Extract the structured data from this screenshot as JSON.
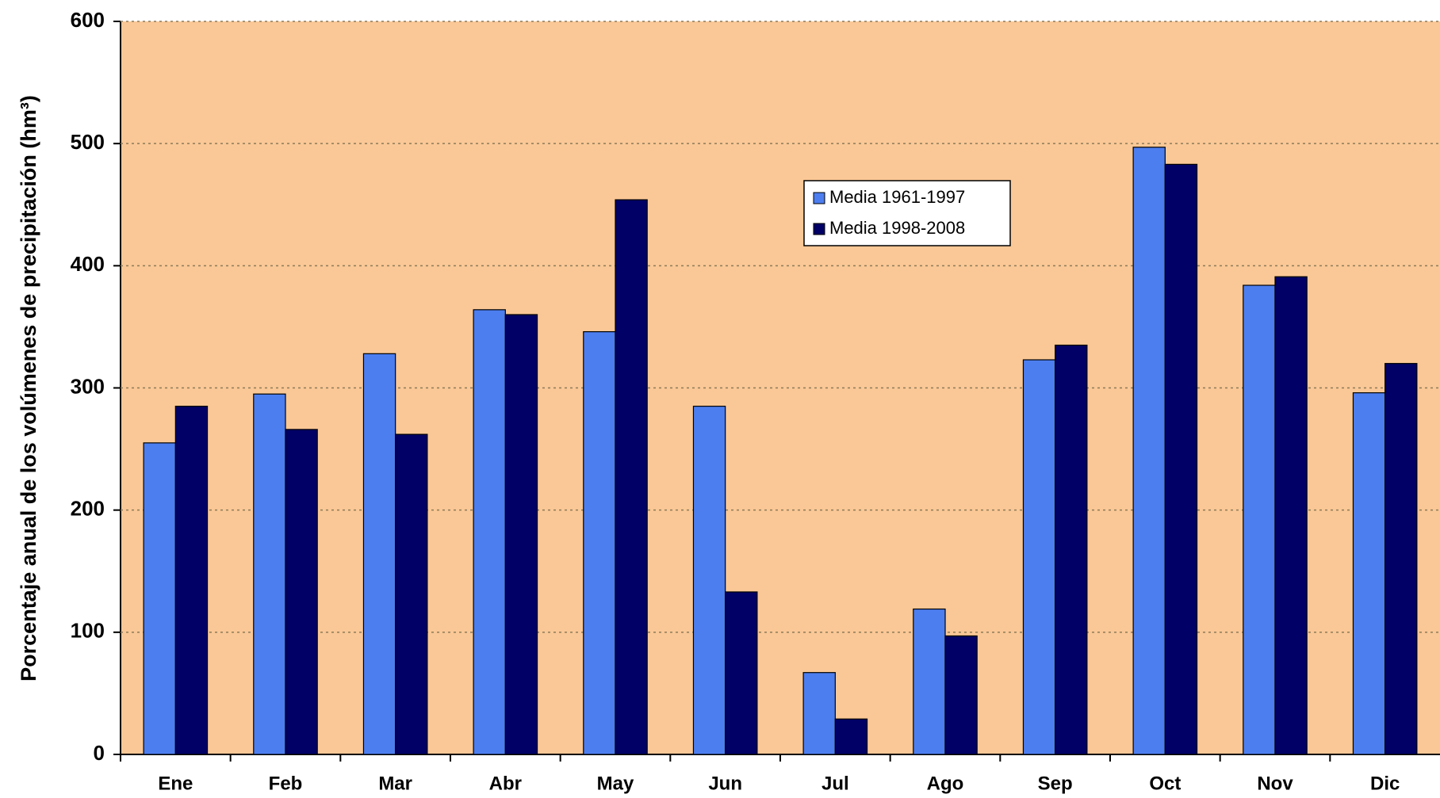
{
  "chart_data": {
    "type": "bar",
    "y_label": "Porcentaje anual de los volúmenes de precipitación  (hm³)",
    "categories": [
      "Ene",
      "Feb",
      "Mar",
      "Abr",
      "May",
      "Jun",
      "Jul",
      "Ago",
      "Sep",
      "Oct",
      "Nov",
      "Dic"
    ],
    "series": [
      {
        "name": "Media 1961-1997",
        "color": "#4d7ef0",
        "values": [
          255,
          295,
          328,
          364,
          346,
          285,
          67,
          119,
          323,
          497,
          384,
          296
        ]
      },
      {
        "name": "Media 1998-2008",
        "color": "#000066",
        "values": [
          285,
          266,
          262,
          360,
          454,
          133,
          29,
          97,
          335,
          483,
          391,
          320
        ]
      }
    ],
    "ylim": [
      0,
      600
    ],
    "yticks": [
      0,
      100,
      200,
      300,
      400,
      500,
      600
    ],
    "grid": true
  }
}
